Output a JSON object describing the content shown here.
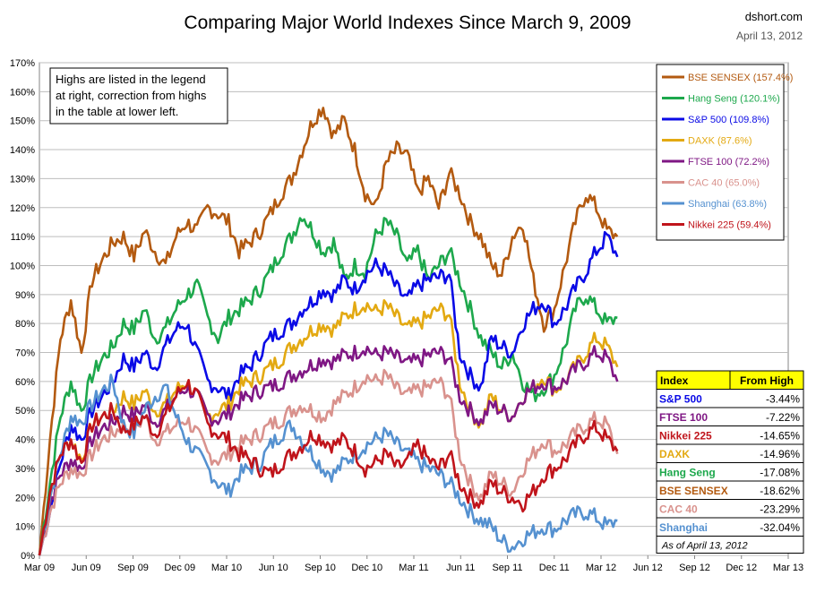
{
  "chart_data": {
    "type": "line",
    "title": "Comparing Major World Indexes Since March 9, 2009",
    "source": "dshort.com",
    "date": "April 13, 2012",
    "note": [
      "Highs are listed in the legend",
      "at right, correction from highs",
      "in the table at lower left."
    ],
    "ylim": [
      0,
      170
    ],
    "yticks": [
      "0%",
      "10%",
      "20%",
      "30%",
      "40%",
      "50%",
      "60%",
      "70%",
      "80%",
      "90%",
      "100%",
      "110%",
      "120%",
      "130%",
      "140%",
      "150%",
      "160%",
      "170%"
    ],
    "xticks": [
      "Mar 09",
      "Jun 09",
      "Sep 09",
      "Dec 09",
      "Mar 10",
      "Jun 10",
      "Sep 10",
      "Dec 10",
      "Mar 11",
      "Jun 11",
      "Sep 11",
      "Dec 11",
      "Mar 12",
      "Jun 12",
      "Sep 12",
      "Dec 12",
      "Mar 13"
    ],
    "grid": true,
    "legend_position": "top-right",
    "series": [
      {
        "name": "BSE SENSEX",
        "legend": "BSE SENSEX (157.4%)",
        "color": "#B35A10",
        "values": [
          0,
          40,
          75,
          88,
          70,
          95,
          102,
          108,
          110,
          103,
          112,
          105,
          100,
          110,
          115,
          112,
          120,
          118,
          115,
          105,
          108,
          112,
          118,
          125,
          130,
          140,
          150,
          155,
          145,
          150,
          140,
          125,
          120,
          135,
          140,
          138,
          125,
          130,
          120,
          132,
          125,
          115,
          110,
          100,
          97,
          110,
          115,
          95,
          80,
          85,
          100,
          115,
          125,
          120,
          112,
          110
        ]
      },
      {
        "name": "Hang Seng",
        "legend": "Hang Seng (120.1%)",
        "color": "#1DA84C",
        "values": [
          0,
          25,
          48,
          60,
          50,
          62,
          68,
          72,
          80,
          78,
          85,
          75,
          78,
          85,
          90,
          93,
          82,
          75,
          82,
          85,
          88,
          92,
          98,
          105,
          110,
          118,
          112,
          105,
          108,
          95,
          100,
          98,
          110,
          115,
          110,
          100,
          105,
          95,
          100,
          105,
          95,
          85,
          75,
          70,
          65,
          70,
          60,
          55,
          58,
          62,
          72,
          85,
          90,
          85,
          80,
          82
        ]
      },
      {
        "name": "S&P 500",
        "legend": "S&P 500 (109.8%)",
        "color": "#0A0AE6",
        "values": [
          0,
          15,
          32,
          45,
          40,
          50,
          55,
          60,
          68,
          65,
          70,
          65,
          72,
          78,
          80,
          70,
          60,
          58,
          55,
          62,
          65,
          70,
          75,
          78,
          80,
          85,
          88,
          92,
          90,
          95,
          92,
          97,
          100,
          98,
          92,
          88,
          93,
          95,
          96,
          97,
          70,
          62,
          58,
          75,
          72,
          70,
          80,
          85,
          88,
          80,
          85,
          92,
          98,
          105,
          110,
          103
        ]
      },
      {
        "name": "DAXK",
        "legend": "DAXK (87.6%)",
        "color": "#E3A912",
        "values": [
          0,
          20,
          35,
          40,
          33,
          45,
          48,
          50,
          55,
          52,
          57,
          50,
          52,
          57,
          60,
          55,
          48,
          50,
          52,
          58,
          60,
          62,
          65,
          68,
          72,
          75,
          78,
          80,
          78,
          82,
          85,
          87,
          84,
          86,
          82,
          78,
          80,
          82,
          85,
          83,
          60,
          50,
          45,
          55,
          50,
          48,
          55,
          58,
          62,
          57,
          60,
          65,
          70,
          75,
          72,
          65
        ]
      },
      {
        "name": "FTSE 100",
        "legend": "FTSE 100 (72.2%)",
        "color": "#7F1784",
        "values": [
          0,
          18,
          28,
          33,
          30,
          40,
          44,
          46,
          50,
          48,
          52,
          46,
          50,
          55,
          58,
          55,
          48,
          47,
          49,
          53,
          55,
          57,
          58,
          60,
          62,
          64,
          66,
          68,
          67,
          69,
          70,
          72,
          69,
          70,
          68,
          66,
          67,
          69,
          70,
          68,
          55,
          50,
          46,
          52,
          50,
          48,
          55,
          58,
          60,
          58,
          60,
          64,
          67,
          70,
          68,
          60
        ]
      },
      {
        "name": "CAC 40",
        "legend": "CAC 40 (65.0%)",
        "color": "#D9928D",
        "values": [
          0,
          15,
          25,
          30,
          28,
          35,
          40,
          42,
          45,
          43,
          48,
          40,
          42,
          45,
          47,
          42,
          35,
          33,
          35,
          38,
          40,
          42,
          45,
          47,
          50,
          52,
          50,
          48,
          52,
          55,
          58,
          62,
          60,
          62,
          57,
          55,
          57,
          58,
          60,
          55,
          35,
          25,
          20,
          28,
          25,
          22,
          30,
          35,
          40,
          36,
          38,
          42,
          45,
          47,
          45,
          35
        ]
      },
      {
        "name": "Shanghai",
        "legend": "Shanghai (63.8%)",
        "color": "#5591D0",
        "values": [
          0,
          20,
          35,
          48,
          46,
          52,
          57,
          60,
          45,
          42,
          50,
          55,
          58,
          48,
          40,
          35,
          30,
          25,
          22,
          28,
          30,
          32,
          38,
          42,
          45,
          40,
          35,
          30,
          28,
          32,
          35,
          38,
          40,
          42,
          38,
          35,
          32,
          30,
          28,
          25,
          20,
          15,
          12,
          10,
          5,
          3,
          6,
          8,
          10,
          9,
          12,
          14,
          15,
          13,
          10,
          12
        ]
      },
      {
        "name": "Nikkei 225",
        "legend": "Nikkei 225 (59.4%)",
        "color": "#C0141B",
        "values": [
          0,
          22,
          35,
          40,
          32,
          45,
          48,
          50,
          43,
          45,
          48,
          42,
          48,
          55,
          60,
          55,
          45,
          42,
          40,
          35,
          33,
          30,
          28,
          32,
          35,
          38,
          42,
          40,
          38,
          40,
          36,
          30,
          32,
          35,
          30,
          32,
          38,
          33,
          30,
          35,
          25,
          20,
          18,
          25,
          22,
          20,
          18,
          22,
          28,
          30,
          33,
          38,
          42,
          44,
          40,
          36
        ]
      }
    ],
    "table": {
      "header": [
        "Index",
        "From High"
      ],
      "rows": [
        {
          "index": "S&P 500",
          "value": "-3.44%",
          "color": "#0A0AE6"
        },
        {
          "index": "FTSE 100",
          "value": "-7.22%",
          "color": "#7F1784"
        },
        {
          "index": "Nikkei 225",
          "value": "-14.65%",
          "color": "#C0141B"
        },
        {
          "index": "DAXK",
          "value": "-14.96%",
          "color": "#E3A912"
        },
        {
          "index": "Hang Seng",
          "value": "-17.08%",
          "color": "#1DA84C"
        },
        {
          "index": "BSE SENSEX",
          "value": "-18.62%",
          "color": "#B35A10"
        },
        {
          "index": "CAC 40",
          "value": "-23.29%",
          "color": "#D9928D"
        },
        {
          "index": "Shanghai",
          "value": "-32.04%",
          "color": "#5591D0"
        }
      ],
      "footnote": "As of April 13, 2012"
    }
  }
}
